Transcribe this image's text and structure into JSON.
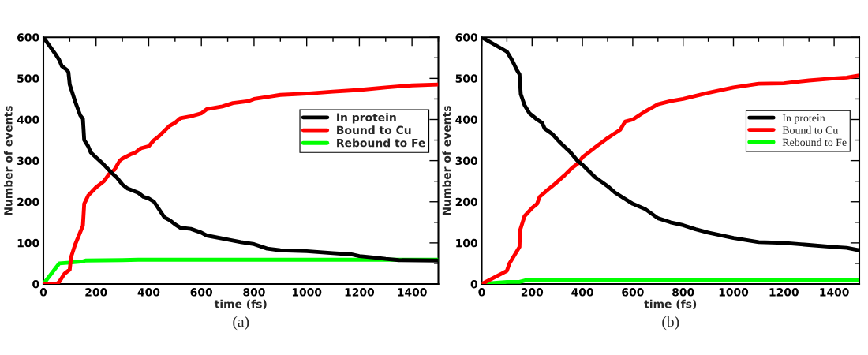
{
  "chart_data": [
    {
      "type": "line",
      "xlabel": "time (fs)",
      "ylabel": "Number of events",
      "xlim": [
        0,
        1500
      ],
      "ylim": [
        0,
        600
      ],
      "xticks": [
        0,
        200,
        400,
        600,
        800,
        1000,
        1200,
        1400
      ],
      "yticks": [
        0,
        100,
        200,
        300,
        400,
        500,
        600
      ],
      "legend": "right",
      "annotations": [
        "(a)"
      ],
      "series": [
        {
          "name": "In protein",
          "color": "#000000",
          "x": [
            0,
            50,
            60,
            70,
            90,
            95,
            100,
            120,
            140,
            150,
            155,
            170,
            180,
            200,
            230,
            260,
            280,
            300,
            320,
            360,
            380,
            400,
            420,
            460,
            480,
            500,
            520,
            560,
            600,
            620,
            700,
            750,
            800,
            850,
            900,
            1000,
            1100,
            1170,
            1200,
            1260,
            1300,
            1350,
            1500
          ],
          "values": [
            600,
            555,
            545,
            530,
            520,
            515,
            485,
            445,
            410,
            402,
            350,
            335,
            320,
            308,
            290,
            270,
            258,
            242,
            232,
            222,
            212,
            208,
            200,
            162,
            155,
            145,
            137,
            134,
            125,
            118,
            108,
            102,
            97,
            86,
            82,
            80,
            75,
            72,
            68,
            64,
            61,
            58,
            57
          ]
        },
        {
          "name": "Bound to Cu",
          "color": "#ff0000",
          "x": [
            0,
            50,
            60,
            80,
            100,
            105,
            120,
            150,
            155,
            170,
            200,
            230,
            250,
            270,
            290,
            300,
            330,
            350,
            370,
            400,
            420,
            440,
            480,
            500,
            520,
            560,
            600,
            620,
            680,
            720,
            780,
            800,
            850,
            900,
            1000,
            1100,
            1200,
            1300,
            1400,
            1500
          ],
          "values": [
            0,
            0,
            5,
            25,
            35,
            65,
            95,
            142,
            195,
            215,
            235,
            250,
            268,
            278,
            300,
            305,
            315,
            320,
            330,
            335,
            350,
            360,
            385,
            392,
            403,
            408,
            415,
            425,
            432,
            440,
            445,
            450,
            455,
            460,
            463,
            468,
            472,
            478,
            483,
            485
          ]
        },
        {
          "name": "Rebound to Fe",
          "color": "#00ff00",
          "x": [
            0,
            60,
            100,
            150,
            160,
            300,
            360,
            1500
          ],
          "values": [
            0,
            50,
            52,
            55,
            57,
            58,
            59,
            59
          ]
        }
      ]
    },
    {
      "type": "line",
      "xlabel": "time (fs)",
      "ylabel": "Number of events",
      "xlim": [
        0,
        1500
      ],
      "ylim": [
        0,
        600
      ],
      "xticks": [
        0,
        200,
        400,
        600,
        800,
        1000,
        1200,
        1400
      ],
      "yticks": [
        0,
        100,
        200,
        300,
        400,
        500,
        600
      ],
      "legend": "right",
      "annotations": [
        "(b)"
      ],
      "series": [
        {
          "name": "In protein",
          "color": "#000000",
          "x": [
            0,
            100,
            120,
            140,
            150,
            155,
            170,
            190,
            220,
            240,
            250,
            280,
            310,
            350,
            380,
            400,
            450,
            500,
            530,
            600,
            650,
            700,
            750,
            800,
            850,
            900,
            1000,
            1100,
            1200,
            1300,
            1400,
            1450,
            1500
          ],
          "values": [
            600,
            565,
            545,
            520,
            510,
            462,
            435,
            415,
            400,
            392,
            378,
            365,
            345,
            322,
            300,
            290,
            260,
            238,
            222,
            195,
            182,
            160,
            150,
            143,
            133,
            125,
            112,
            102,
            100,
            95,
            90,
            88,
            82
          ]
        },
        {
          "name": "Bound to Cu",
          "color": "#ff0000",
          "x": [
            0,
            100,
            110,
            140,
            150,
            152,
            170,
            200,
            220,
            230,
            260,
            290,
            330,
            360,
            380,
            400,
            450,
            500,
            550,
            570,
            600,
            650,
            700,
            750,
            800,
            900,
            1000,
            1100,
            1200,
            1300,
            1400,
            1450,
            1500
          ],
          "values": [
            0,
            32,
            50,
            80,
            90,
            130,
            165,
            185,
            195,
            212,
            228,
            243,
            265,
            283,
            292,
            308,
            332,
            355,
            375,
            395,
            400,
            420,
            437,
            445,
            450,
            465,
            478,
            487,
            488,
            495,
            500,
            502,
            507
          ]
        },
        {
          "name": "Rebound to Fe",
          "color": "#00ff00",
          "x": [
            0,
            100,
            150,
            180,
            1500
          ],
          "values": [
            0,
            5,
            5,
            10,
            10
          ]
        }
      ]
    }
  ]
}
